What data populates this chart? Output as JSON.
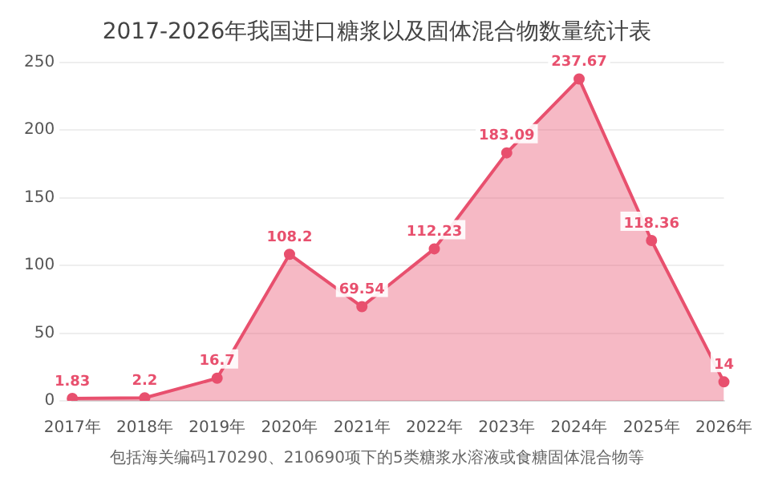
{
  "chart_data": {
    "type": "area",
    "title": "2017-2026年我国进口糖浆以及固体混合物数量统计表",
    "categories": [
      "2017年",
      "2018年",
      "2019年",
      "2020年",
      "2021年",
      "2022年",
      "2023年",
      "2024年",
      "2025年",
      "2026年"
    ],
    "series": [
      {
        "color": "#e8506e",
        "values": [
          1.83,
          2.2,
          16.7,
          108.2,
          69.54,
          112.23,
          183.09,
          237.67,
          118.36,
          14
        ]
      }
    ],
    "ylim": [
      0,
      250
    ],
    "yticks": [
      0,
      50,
      100,
      150,
      200,
      250
    ],
    "grid": "y",
    "marker": "circle",
    "data_labels": true,
    "annotations": [
      "包括海关编码170290、210690项下的5类糖浆水溶液或食糖固体混合物等"
    ]
  }
}
